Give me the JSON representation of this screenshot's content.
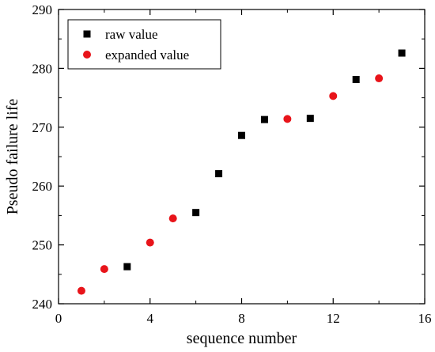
{
  "chart_data": {
    "type": "scatter",
    "xlabel": "sequence number",
    "ylabel": "Pseudo failure life",
    "xlim": [
      0,
      16
    ],
    "ylim": [
      240,
      290
    ],
    "xticks": [
      0,
      4,
      8,
      12,
      16
    ],
    "yticks": [
      240,
      250,
      260,
      270,
      280,
      290
    ],
    "grid": false,
    "legend_position": "top-left",
    "series": [
      {
        "name": "raw value",
        "marker": "square",
        "color": "#000000",
        "x": [
          3,
          6,
          7,
          8,
          9,
          11,
          13,
          15
        ],
        "y": [
          246.3,
          255.5,
          262.1,
          268.6,
          271.3,
          271.5,
          278.1,
          282.6
        ]
      },
      {
        "name": "expanded value",
        "marker": "circle",
        "color": "#e8141a",
        "x": [
          1,
          2,
          4,
          5,
          10,
          12,
          14
        ],
        "y": [
          242.2,
          245.9,
          250.4,
          254.5,
          271.4,
          275.3,
          278.3
        ]
      }
    ]
  }
}
